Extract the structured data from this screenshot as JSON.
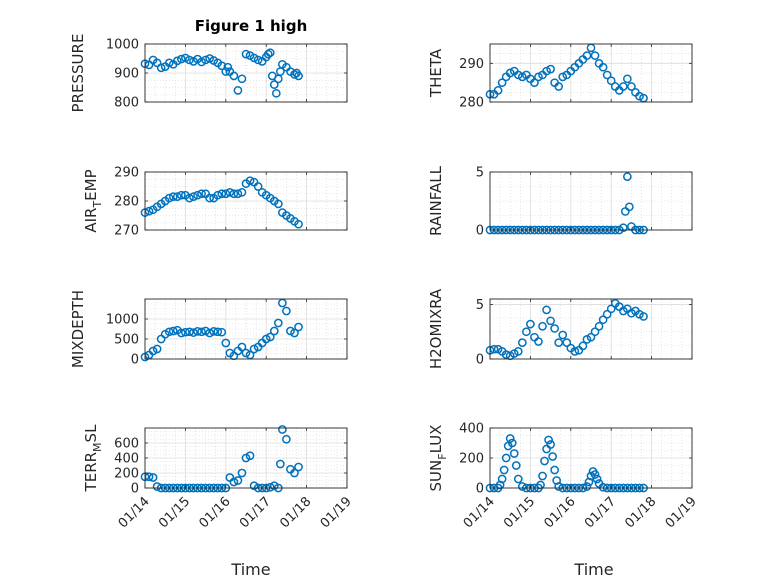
{
  "figure": {
    "title": "Figure 1 high",
    "xlabel": "Time",
    "x_ticks": [
      "01/14",
      "01/15",
      "01/16",
      "01/17",
      "01/18",
      "01/19"
    ],
    "marker_color": "#0072BD",
    "marker": "open-circle"
  },
  "chart_data": [
    {
      "type": "scatter",
      "panel": "top-left",
      "ylabel": "PRESSURE",
      "ylim": [
        800,
        1000
      ],
      "yticks": [
        800,
        900,
        1000
      ],
      "xlim": [
        14,
        19
      ],
      "grid": true,
      "title": "Figure 1 high",
      "x": [
        14.0,
        14.1,
        14.2,
        14.3,
        14.4,
        14.5,
        14.6,
        14.7,
        14.8,
        14.9,
        15.0,
        15.1,
        15.2,
        15.3,
        15.4,
        15.5,
        15.6,
        15.7,
        15.8,
        15.9,
        16.0,
        16.05,
        16.1,
        16.2,
        16.3,
        16.4,
        16.5,
        16.6,
        16.7,
        16.8,
        16.9,
        17.0,
        17.05,
        17.1,
        17.15,
        17.2,
        17.25,
        17.3,
        17.35,
        17.4,
        17.5,
        17.6,
        17.7,
        17.75,
        17.8
      ],
      "y": [
        932,
        928,
        945,
        935,
        918,
        922,
        935,
        930,
        942,
        948,
        952,
        945,
        940,
        948,
        938,
        945,
        950,
        943,
        935,
        925,
        905,
        920,
        905,
        890,
        840,
        880,
        965,
        960,
        952,
        945,
        940,
        955,
        965,
        970,
        890,
        860,
        830,
        880,
        905,
        930,
        920,
        905,
        895,
        900,
        890
      ]
    },
    {
      "type": "scatter",
      "panel": "top-right",
      "ylabel": "THETA",
      "ylim": [
        280,
        295
      ],
      "yticks": [
        280,
        290
      ],
      "xlim": [
        14,
        19
      ],
      "grid": true,
      "x": [
        14.0,
        14.1,
        14.2,
        14.3,
        14.4,
        14.5,
        14.6,
        14.7,
        14.8,
        14.9,
        15.0,
        15.1,
        15.2,
        15.3,
        15.4,
        15.5,
        15.6,
        15.7,
        15.8,
        15.9,
        16.0,
        16.1,
        16.2,
        16.3,
        16.4,
        16.5,
        16.6,
        16.7,
        16.8,
        16.9,
        17.0,
        17.1,
        17.2,
        17.3,
        17.4,
        17.5,
        17.6,
        17.7,
        17.8
      ],
      "y": [
        282,
        282,
        283,
        285,
        286.5,
        287.5,
        288,
        287,
        286.5,
        287,
        286,
        285,
        286.5,
        287,
        288,
        288.5,
        285,
        284,
        286.5,
        287,
        288,
        289,
        290,
        291,
        292,
        294,
        292,
        290,
        289,
        287,
        285.5,
        284,
        283,
        284,
        286,
        284,
        282.5,
        281.5,
        281
      ]
    },
    {
      "type": "scatter",
      "panel": "row2-left",
      "ylabel": "AIR_TEMP",
      "ylabel_render": {
        "base": "AIR",
        "sub": "T",
        "tail": "EMP"
      },
      "ylim": [
        270,
        290
      ],
      "yticks": [
        270,
        280,
        290
      ],
      "xlim": [
        14,
        19
      ],
      "grid": true,
      "x": [
        14.0,
        14.1,
        14.2,
        14.3,
        14.4,
        14.5,
        14.6,
        14.7,
        14.8,
        14.9,
        15.0,
        15.1,
        15.2,
        15.3,
        15.4,
        15.5,
        15.6,
        15.7,
        15.8,
        15.9,
        16.0,
        16.1,
        16.2,
        16.3,
        16.4,
        16.5,
        16.6,
        16.7,
        16.8,
        16.9,
        17.0,
        17.1,
        17.2,
        17.3,
        17.4,
        17.5,
        17.6,
        17.7,
        17.8
      ],
      "y": [
        276,
        276.5,
        277,
        278,
        279,
        280,
        281,
        281.5,
        281.5,
        282,
        282,
        281,
        281.5,
        282,
        282.5,
        282.5,
        281,
        281,
        282,
        282.5,
        282.5,
        283,
        282.5,
        282.5,
        283,
        286,
        287,
        286.5,
        285,
        283,
        282,
        281,
        280,
        279,
        276,
        275,
        274,
        273,
        272
      ]
    },
    {
      "type": "scatter",
      "panel": "row2-right",
      "ylabel": "RAINFALL",
      "ylim": [
        0,
        5
      ],
      "yticks": [
        0,
        5
      ],
      "xlim": [
        14,
        19
      ],
      "grid": true,
      "x": [
        14.0,
        14.1,
        14.2,
        14.3,
        14.4,
        14.5,
        14.6,
        14.7,
        14.8,
        14.9,
        15.0,
        15.1,
        15.2,
        15.3,
        15.4,
        15.5,
        15.6,
        15.7,
        15.8,
        15.9,
        16.0,
        16.1,
        16.2,
        16.3,
        16.4,
        16.5,
        16.6,
        16.7,
        16.8,
        16.9,
        17.0,
        17.1,
        17.2,
        17.3,
        17.35,
        17.4,
        17.45,
        17.5,
        17.6,
        17.7,
        17.8
      ],
      "y": [
        0,
        0,
        0,
        0,
        0,
        0,
        0,
        0,
        0,
        0,
        0,
        0,
        0,
        0,
        0,
        0,
        0,
        0,
        0,
        0,
        0,
        0,
        0,
        0,
        0,
        0,
        0,
        0,
        0,
        0,
        0,
        0,
        0,
        0.2,
        1.6,
        4.6,
        2.0,
        0.3,
        0,
        0,
        0
      ]
    },
    {
      "type": "scatter",
      "panel": "row3-left",
      "ylabel": "MIXDEPTH",
      "ylim": [
        0,
        1500
      ],
      "yticks": [
        0,
        500,
        1000
      ],
      "xlim": [
        14,
        19
      ],
      "grid": true,
      "x": [
        14.0,
        14.1,
        14.2,
        14.3,
        14.4,
        14.5,
        14.6,
        14.7,
        14.8,
        14.9,
        15.0,
        15.1,
        15.2,
        15.3,
        15.4,
        15.5,
        15.6,
        15.7,
        15.8,
        15.9,
        16.0,
        16.1,
        16.2,
        16.3,
        16.4,
        16.5,
        16.6,
        16.7,
        16.8,
        16.9,
        17.0,
        17.1,
        17.2,
        17.3,
        17.4,
        17.5,
        17.6,
        17.7,
        17.8
      ],
      "y": [
        50,
        100,
        200,
        250,
        500,
        620,
        680,
        700,
        720,
        650,
        670,
        680,
        660,
        690,
        680,
        700,
        650,
        690,
        680,
        670,
        400,
        150,
        80,
        200,
        300,
        150,
        100,
        250,
        300,
        400,
        500,
        550,
        700,
        900,
        1400,
        1200,
        700,
        650,
        800
      ]
    },
    {
      "type": "scatter",
      "panel": "row3-right",
      "ylabel": "H2OMIXRA",
      "ylim": [
        0,
        5.5
      ],
      "yticks": [
        0,
        5
      ],
      "xlim": [
        14,
        19
      ],
      "grid": true,
      "x": [
        14.0,
        14.1,
        14.2,
        14.3,
        14.4,
        14.5,
        14.6,
        14.7,
        14.8,
        14.9,
        15.0,
        15.1,
        15.2,
        15.3,
        15.4,
        15.5,
        15.6,
        15.7,
        15.8,
        15.9,
        16.0,
        16.1,
        16.2,
        16.3,
        16.4,
        16.5,
        16.6,
        16.7,
        16.8,
        16.9,
        17.0,
        17.1,
        17.2,
        17.3,
        17.4,
        17.5,
        17.6,
        17.7,
        17.8
      ],
      "y": [
        0.8,
        0.9,
        0.9,
        0.7,
        0.4,
        0.3,
        0.5,
        0.7,
        1.5,
        2.5,
        3.2,
        2.0,
        1.6,
        3.0,
        4.5,
        3.5,
        2.8,
        1.5,
        2.2,
        1.5,
        1.0,
        0.7,
        0.8,
        1.2,
        1.8,
        2.0,
        2.5,
        3.0,
        3.6,
        4.1,
        4.6,
        5.1,
        4.8,
        4.4,
        4.6,
        4.2,
        4.4,
        4.1,
        3.9
      ]
    },
    {
      "type": "scatter",
      "panel": "bottom-left",
      "ylabel": "TERR_MSL",
      "ylabel_render": {
        "base": "TERR",
        "sub": "M",
        "tail": "SL"
      },
      "ylim": [
        0,
        800
      ],
      "yticks": [
        0,
        200,
        400,
        600
      ],
      "xlim": [
        14,
        19
      ],
      "grid": true,
      "x": [
        14.0,
        14.1,
        14.2,
        14.3,
        14.4,
        14.5,
        14.6,
        14.7,
        14.8,
        14.9,
        15.0,
        15.1,
        15.2,
        15.3,
        15.4,
        15.5,
        15.6,
        15.7,
        15.8,
        15.9,
        16.0,
        16.1,
        16.2,
        16.3,
        16.4,
        16.5,
        16.6,
        16.7,
        16.8,
        16.9,
        17.0,
        17.1,
        17.2,
        17.3,
        17.35,
        17.4,
        17.5,
        17.6,
        17.7,
        17.8
      ],
      "y": [
        150,
        150,
        140,
        20,
        0,
        0,
        0,
        0,
        0,
        0,
        0,
        0,
        0,
        0,
        0,
        0,
        0,
        0,
        0,
        0,
        0,
        140,
        80,
        100,
        200,
        400,
        430,
        30,
        0,
        0,
        0,
        10,
        30,
        0,
        320,
        780,
        650,
        250,
        200,
        280
      ]
    },
    {
      "type": "scatter",
      "panel": "bottom-right",
      "ylabel": "SUN_FLUX",
      "ylabel_render": {
        "base": "SUN",
        "sub": "F",
        "tail": "LUX"
      },
      "ylim": [
        0,
        400
      ],
      "yticks": [
        0,
        200,
        400
      ],
      "xlim": [
        14,
        19
      ],
      "grid": true,
      "x": [
        14.0,
        14.1,
        14.2,
        14.25,
        14.3,
        14.35,
        14.4,
        14.45,
        14.5,
        14.55,
        14.6,
        14.65,
        14.7,
        14.8,
        14.9,
        15.0,
        15.1,
        15.2,
        15.25,
        15.3,
        15.35,
        15.4,
        15.45,
        15.5,
        15.55,
        15.6,
        15.65,
        15.7,
        15.8,
        15.9,
        16.0,
        16.1,
        16.2,
        16.3,
        16.4,
        16.45,
        16.5,
        16.55,
        16.6,
        16.65,
        16.7,
        16.8,
        16.9,
        17.0,
        17.1,
        17.2,
        17.3,
        17.4,
        17.5,
        17.6,
        17.7,
        17.8
      ],
      "y": [
        0,
        0,
        0,
        20,
        60,
        120,
        200,
        280,
        330,
        300,
        230,
        150,
        60,
        10,
        0,
        0,
        0,
        0,
        20,
        80,
        180,
        260,
        320,
        290,
        210,
        120,
        50,
        10,
        0,
        0,
        0,
        0,
        0,
        0,
        10,
        40,
        80,
        110,
        90,
        60,
        30,
        5,
        0,
        0,
        0,
        0,
        0,
        0,
        0,
        0,
        0,
        0
      ]
    }
  ]
}
